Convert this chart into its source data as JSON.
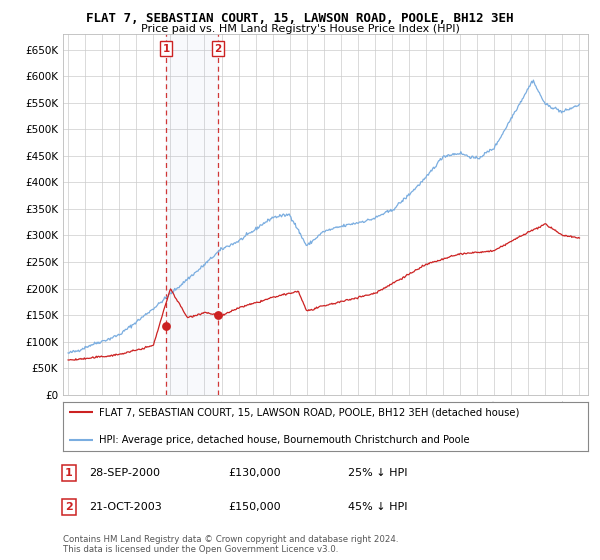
{
  "title": "FLAT 7, SEBASTIAN COURT, 15, LAWSON ROAD, POOLE, BH12 3EH",
  "subtitle": "Price paid vs. HM Land Registry's House Price Index (HPI)",
  "legend_line1": "FLAT 7, SEBASTIAN COURT, 15, LAWSON ROAD, POOLE, BH12 3EH (detached house)",
  "legend_line2": "HPI: Average price, detached house, Bournemouth Christchurch and Poole",
  "transaction1_label": "1",
  "transaction1_date": "28-SEP-2000",
  "transaction1_price": "£130,000",
  "transaction1_hpi": "25% ↓ HPI",
  "transaction2_label": "2",
  "transaction2_date": "21-OCT-2003",
  "transaction2_price": "£150,000",
  "transaction2_hpi": "45% ↓ HPI",
  "footnote": "Contains HM Land Registry data © Crown copyright and database right 2024.\nThis data is licensed under the Open Government Licence v3.0.",
  "hpi_color": "#7aade0",
  "price_color": "#cc2222",
  "marker_color": "#cc2222",
  "background_color": "#ffffff",
  "grid_color": "#cccccc",
  "ylim_min": 0,
  "ylim_max": 680000,
  "yticks": [
    0,
    50000,
    100000,
    150000,
    200000,
    250000,
    300000,
    350000,
    400000,
    450000,
    500000,
    550000,
    600000,
    650000
  ],
  "transaction1_year": 2000.75,
  "transaction1_value": 130000,
  "transaction2_year": 2003.8,
  "transaction2_value": 150000,
  "xmin": 1994.7,
  "xmax": 2025.5
}
